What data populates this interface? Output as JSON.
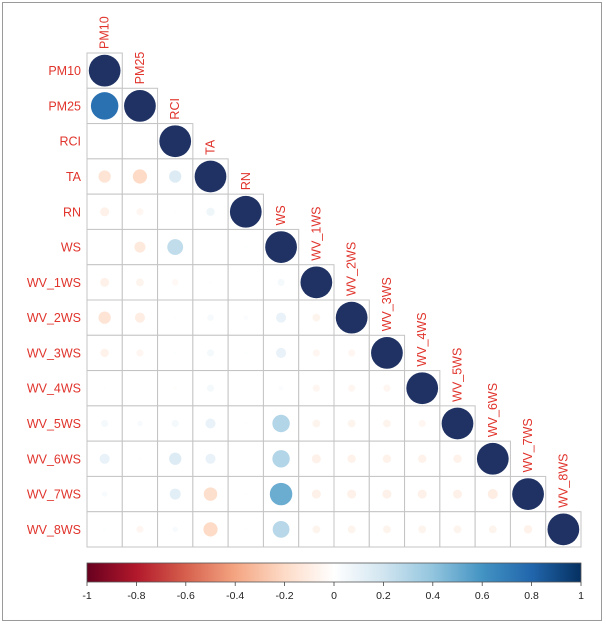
{
  "chart_data": {
    "type": "heatmap",
    "method": "circle",
    "layout": "lower-triangle",
    "variables": [
      "PM10",
      "PM25",
      "RCI",
      "TA",
      "RN",
      "WS",
      "WV_1WS",
      "WV_2WS",
      "WV_3WS",
      "WV_4WS",
      "WV_5WS",
      "WV_6WS",
      "WV_7WS",
      "WV_8WS"
    ],
    "matrix_lower": [
      [
        1
      ],
      [
        0.75,
        1
      ],
      [
        0,
        0,
        1
      ],
      [
        -0.15,
        -0.2,
        0.15,
        1
      ],
      [
        -0.08,
        -0.05,
        0.01,
        0.07,
        1
      ],
      [
        0,
        -0.12,
        0.25,
        0,
        0.01,
        1
      ],
      [
        -0.08,
        -0.06,
        -0.04,
        0.01,
        0,
        0.05,
        1
      ],
      [
        -0.15,
        -0.1,
        0.01,
        0.04,
        0.02,
        0.1,
        -0.06,
        1
      ],
      [
        -0.07,
        -0.05,
        0.01,
        0.05,
        0.01,
        0.1,
        -0.05,
        -0.05,
        1
      ],
      [
        0.01,
        0,
        -0.01,
        0.05,
        0,
        0.02,
        -0.05,
        -0.05,
        -0.05,
        1
      ],
      [
        0.05,
        0.03,
        0.05,
        0.1,
        0.01,
        0.3,
        -0.06,
        -0.06,
        -0.06,
        -0.05,
        1
      ],
      [
        0.1,
        0.01,
        0.15,
        0.1,
        0,
        0.3,
        -0.08,
        -0.07,
        -0.07,
        -0.07,
        -0.07,
        1
      ],
      [
        0.03,
        0,
        0.12,
        -0.18,
        0.01,
        0.5,
        -0.08,
        -0.08,
        -0.08,
        -0.08,
        -0.08,
        -0.1,
        1
      ],
      [
        0.01,
        -0.05,
        0.03,
        -0.2,
        0.01,
        0.28,
        -0.06,
        -0.06,
        -0.06,
        -0.06,
        -0.06,
        -0.06,
        -0.07,
        1
      ]
    ],
    "colorbar": {
      "range": [
        -1,
        1
      ],
      "ticks": [
        "-1",
        "-0.8",
        "-0.6",
        "-0.4",
        "-0.2",
        "0",
        "0.2",
        "0.4",
        "0.6",
        "0.8",
        "1"
      ],
      "colors": [
        "#67001F",
        "#B2182B",
        "#D6604D",
        "#F4A582",
        "#FDDBC7",
        "#FFFFFF",
        "#D1E5F0",
        "#92C5DE",
        "#4393C3",
        "#2166AC",
        "#053061"
      ]
    },
    "label_color": "#E0342C",
    "diagonal_color": "#1F3263"
  }
}
